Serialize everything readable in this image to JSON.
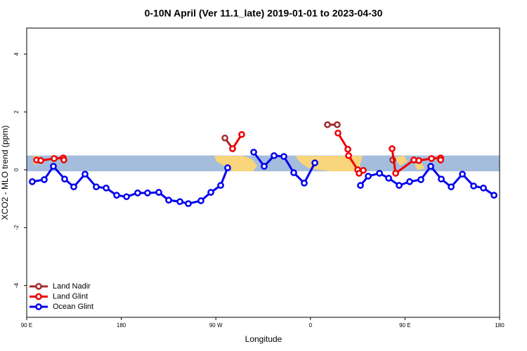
{
  "chart_data": {
    "type": "line",
    "title": "0-10N April (Ver 11.1_late)   2019-01-01 to 2023-04-30",
    "x_label": "Longitude",
    "y_label": "XCO2 - MLO trend (ppm)",
    "xlim": [
      90,
      540
    ],
    "ylim": [
      -5.1,
      4.9
    ],
    "xticks": [
      {
        "value": 90,
        "label": "90 E"
      },
      180,
      {
        "value": 270,
        "label": "90 W"
      },
      {
        "value": 360,
        "label": "0"
      },
      {
        "value": 450,
        "label": "90 E"
      },
      {
        "value": 540,
        "label": "180"
      }
    ],
    "yticks": [
      -4,
      -2,
      0,
      2,
      4
    ],
    "legend": "bottom-left",
    "series": [
      {
        "name": "Land Nadir",
        "color": "#a52a2a",
        "x": [
          278.6,
          285.9,
          null,
          376.2,
          385.5,
          null,
          438.4
        ],
        "values": [
          1.1,
          0.73,
          null,
          1.56,
          1.56,
          null,
          0.34
        ]
      },
      {
        "name": "Land Glint",
        "color": "#ee0000",
        "x": [
          99.4,
          103.4,
          116.1,
          124.8,
          125.4,
          null,
          285.9,
          294.6,
          null,
          386.2,
          395.6,
          396.3,
          405.0,
          406.3,
          410.3,
          null,
          437.7,
          441.1,
          458.4,
          463.1,
          475.2,
          483.9,
          483.9
        ],
        "values": [
          0.34,
          0.32,
          0.39,
          0.41,
          0.34,
          null,
          0.73,
          1.22,
          null,
          1.27,
          0.71,
          0.49,
          0,
          -0.12,
          -0.02,
          null,
          0.73,
          -0.12,
          0.34,
          0.32,
          0.39,
          0.41,
          0.34
        ]
      },
      {
        "name": "Ocean Glint",
        "color": "#0000ee",
        "x": [
          95.3,
          106.7,
          115.4,
          126.1,
          134.8,
          145.5,
          156.2,
          165.6,
          175.6,
          185.0,
          195.6,
          205.0,
          215.7,
          225.1,
          235.8,
          243.8,
          255.8,
          265.2,
          274.6,
          281.2,
          null,
          306.0,
          316.0,
          325.4,
          334.7,
          344.1,
          354.1,
          364.2,
          null,
          407.6,
          415.0,
          425.7,
          434.4,
          444.4,
          454.4,
          465.1,
          474.5,
          484.5,
          493.9,
          504.6,
          515.3,
          524.6,
          534.7
        ],
        "values": [
          -0.41,
          -0.34,
          0.12,
          -0.32,
          -0.59,
          -0.15,
          -0.59,
          -0.63,
          -0.88,
          -0.93,
          -0.8,
          -0.8,
          -0.78,
          -1.05,
          -1.1,
          -1.17,
          -1.07,
          -0.78,
          -0.54,
          0.07,
          null,
          0.61,
          0.12,
          0.49,
          0.46,
          -0.1,
          -0.46,
          0.24,
          null,
          -0.54,
          -0.22,
          -0.12,
          -0.29,
          -0.54,
          -0.41,
          -0.34,
          0.12,
          -0.32,
          -0.59,
          -0.15,
          -0.56,
          -0.63,
          -0.88
        ]
      }
    ]
  }
}
